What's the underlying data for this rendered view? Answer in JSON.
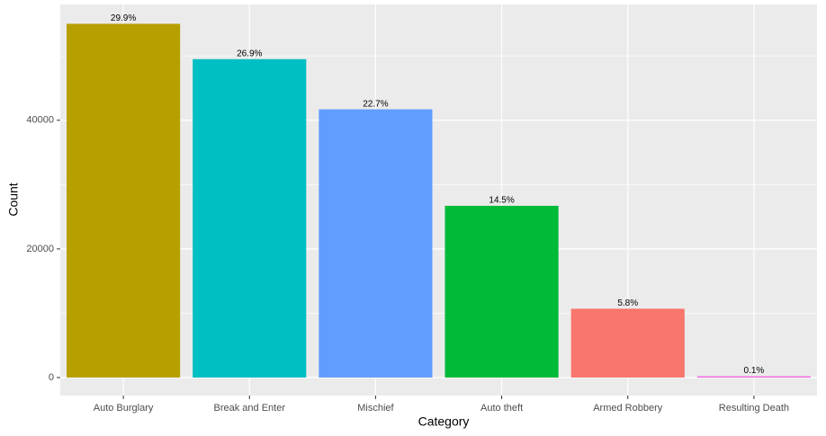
{
  "chart_data": {
    "type": "bar",
    "x_label": "Category",
    "y_label": "Count",
    "categories": [
      "Auto Burglary",
      "Break and Enter",
      "Mischief",
      "Auto theft",
      "Armed Robbery",
      "Resulting Death"
    ],
    "values": [
      55000,
      49500,
      41700,
      26700,
      10700,
      200
    ],
    "annotations": [
      "29.9%",
      "26.9%",
      "22.7%",
      "14.5%",
      "5.8%",
      "0.1%"
    ],
    "colors": [
      "#B79F00",
      "#00BFC4",
      "#619CFF",
      "#00BA38",
      "#F8766D",
      "#F564E3"
    ],
    "ylim": [
      -2800,
      58000
    ],
    "yticks": [
      0,
      20000,
      40000
    ],
    "minor_yticks": [
      10000,
      30000,
      50000
    ],
    "grid": true
  }
}
